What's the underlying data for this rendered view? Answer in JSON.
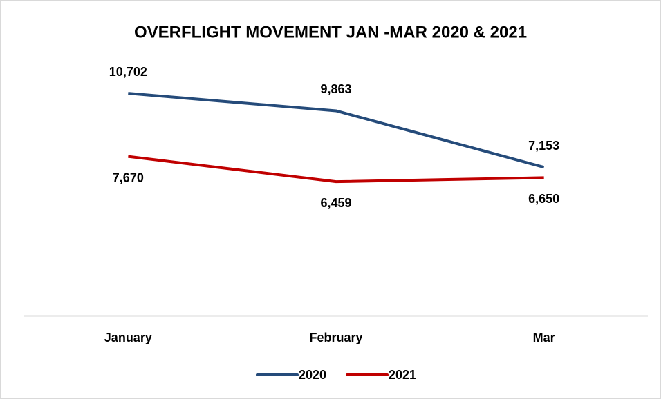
{
  "chart_data": {
    "type": "line",
    "title": "OVERFLIGHT MOVEMENT JAN -MAR 2020 & 2021",
    "categories": [
      "January",
      "February",
      "Mar"
    ],
    "series": [
      {
        "name": "2020",
        "color": "#254b7a",
        "values": [
          10702,
          9863,
          7153
        ],
        "value_labels": [
          "10,702",
          "9,863",
          "7,153"
        ]
      },
      {
        "name": "2021",
        "color": "#c00000",
        "values": [
          7670,
          6459,
          6650
        ],
        "value_labels": [
          "7,670",
          "6,459",
          "6,650"
        ]
      }
    ],
    "ylim": [
      0,
      12000
    ],
    "legend": "bottom"
  }
}
